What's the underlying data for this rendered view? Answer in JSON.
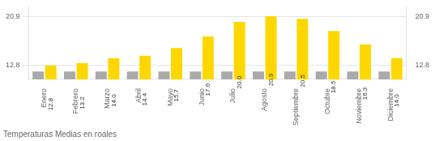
{
  "chart_data": {
    "type": "bar",
    "title": "Temperaturas Medias en roales",
    "categories": [
      "Enero",
      "Febrero",
      "Marzo",
      "Abril",
      "Mayo",
      "Junio",
      "Julio",
      "Agosto",
      "Septiembre",
      "Octubre",
      "Noviembre",
      "Diciembre"
    ],
    "series": [
      {
        "color": "#AAAAAA",
        "values": [
          11.8,
          11.8,
          11.8,
          11.8,
          11.8,
          11.8,
          11.8,
          11.8,
          11.8,
          11.8,
          11.8,
          11.8
        ]
      },
      {
        "color": "#FFD700",
        "data_labels": true,
        "values": [
          12.8,
          13.2,
          14.0,
          14.4,
          15.7,
          17.6,
          20.0,
          20.9,
          20.5,
          18.5,
          16.3,
          14.0
        ],
        "value_labels": [
          "12.8",
          "13.2",
          "14.0",
          "14.4",
          "15.7",
          "17.6",
          "20.0",
          "20.9",
          "20.5",
          "18.5",
          "16.3",
          "14.0"
        ]
      }
    ],
    "ylim": [
      10.5,
      22.5
    ],
    "yticks": [
      12.8,
      20.9
    ],
    "y2lim": [
      10.5,
      22.5
    ],
    "y2ticks": [
      12.8,
      20.9
    ],
    "grid": true
  }
}
